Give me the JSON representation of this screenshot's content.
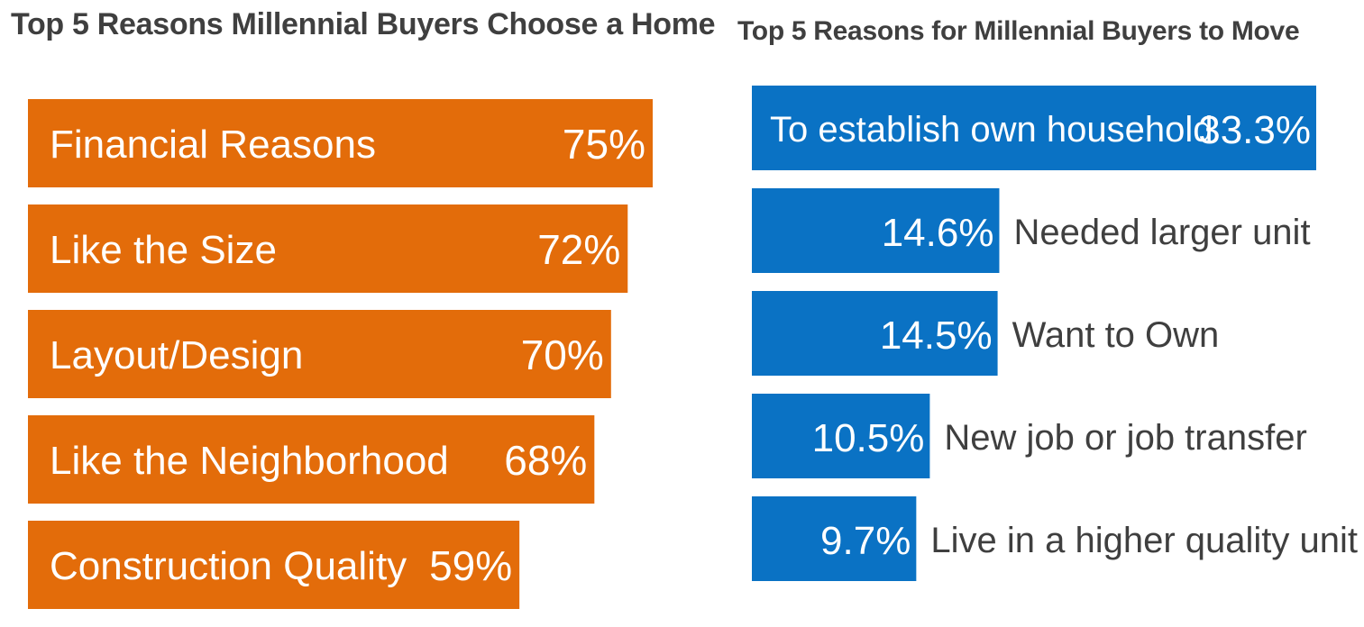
{
  "chart_data": [
    {
      "type": "bar",
      "orientation": "horizontal",
      "title": "Top 5 Reasons Millennial Buyers Choose a Home",
      "categories": [
        "Financial Reasons",
        "Like the Size",
        "Layout/Design",
        "Like the Neighborhood",
        "Construction Quality"
      ],
      "values": [
        75,
        72,
        70,
        68,
        59
      ],
      "value_labels": [
        "75%",
        "72%",
        "70%",
        "68%",
        "59%"
      ],
      "unit": "%",
      "color": "#e36c0a",
      "xlim": [
        0,
        80
      ],
      "grid": false,
      "legend": "none"
    },
    {
      "type": "bar",
      "orientation": "horizontal",
      "title": "Top 5 Reasons for Millennial Buyers to Move",
      "categories": [
        "To establish own household",
        "Needed larger unit",
        "Want to Own",
        "New job or job transfer",
        "Live in a higher quality unit"
      ],
      "values": [
        33.3,
        14.6,
        14.5,
        10.5,
        9.7
      ],
      "value_labels": [
        "33.3%",
        "14.6%",
        "14.5%",
        "10.5%",
        "9.7%"
      ],
      "unit": "%",
      "color": "#0a72c4",
      "xlim": [
        0,
        33.3
      ],
      "grid": false,
      "legend": "none"
    }
  ]
}
